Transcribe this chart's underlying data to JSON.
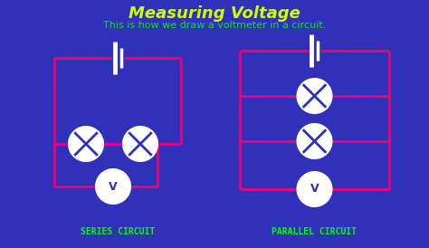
{
  "bg_color": "#3030BB",
  "title": "Measuring Voltage",
  "subtitle": "This is how we draw a voltmeter in a circuit.",
  "title_color": "#CCFF00",
  "subtitle_color": "#00EE00",
  "wire_color": "#EE0077",
  "symbol_color": "white",
  "label_color": "#00FF00",
  "series_label": "SERIES CIRCUIT",
  "parallel_label": "PARALLEL CIRCUIT",
  "wire_lw": 2.0,
  "battery_long": 0.18,
  "battery_short": 0.11
}
